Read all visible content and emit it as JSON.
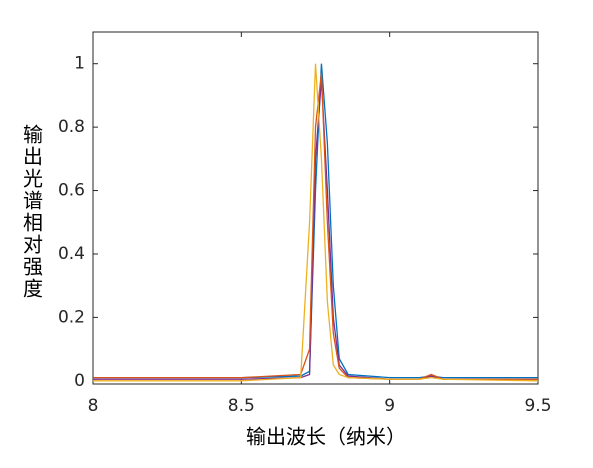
{
  "chart_data": {
    "type": "line",
    "xlabel": "输出波长（纳米）",
    "ylabel": "输出光谱相对强度",
    "x": [
      8,
      8.5,
      8.7,
      8.73,
      8.75,
      8.77,
      8.79,
      8.81,
      8.83,
      8.86,
      9,
      9.1,
      9.14,
      9.18,
      9.5
    ],
    "series": [
      {
        "color": "#0072BD",
        "values": [
          0.01,
          0.01,
          0.015,
          0.03,
          0.6,
          1.0,
          0.75,
          0.3,
          0.07,
          0.02,
          0.01,
          0.01,
          0.015,
          0.01,
          0.01
        ]
      },
      {
        "color": "#7E2F8E",
        "values": [
          0.005,
          0.005,
          0.01,
          0.02,
          0.7,
          0.95,
          0.6,
          0.2,
          0.05,
          0.015,
          0.005,
          0.005,
          0.015,
          0.005,
          0.005
        ]
      },
      {
        "color": "#D95319",
        "values": [
          0.01,
          0.01,
          0.02,
          0.1,
          0.8,
          0.97,
          0.5,
          0.15,
          0.04,
          0.01,
          0.005,
          0.005,
          0.02,
          0.005,
          0.005
        ]
      },
      {
        "color": "#EDB120",
        "values": [
          0,
          0,
          0.01,
          0.5,
          1.0,
          0.7,
          0.25,
          0.05,
          0.02,
          0.01,
          0.005,
          0.005,
          0.01,
          0.005,
          0
        ]
      }
    ],
    "xlim": [
      8,
      9.5
    ],
    "xticks": [
      8,
      8.5,
      9,
      9.5
    ],
    "ylim": [
      -0.01,
      1.1
    ],
    "yticks": [
      0,
      0.2,
      0.4,
      0.6,
      0.8,
      1
    ]
  }
}
